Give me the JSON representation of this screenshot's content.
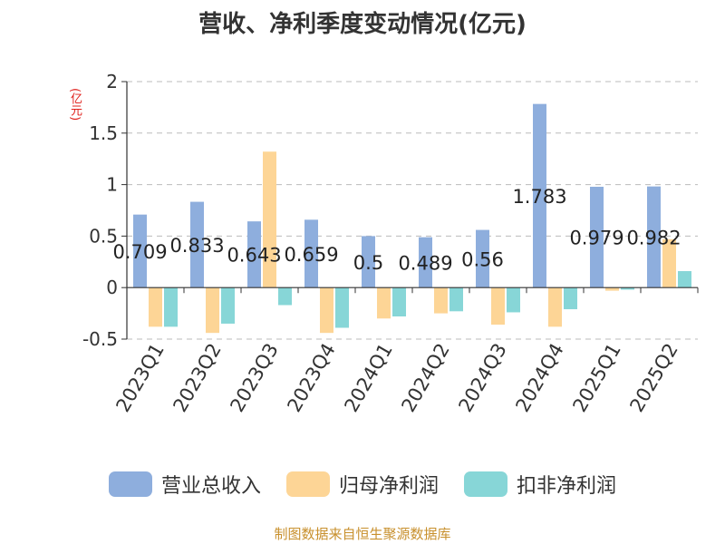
{
  "title": "营收、净利季度变动情况(亿元)",
  "unit_label": "(亿元)",
  "source": "制图数据来自恒生聚源数据库",
  "chart_data": {
    "type": "bar",
    "categories": [
      "2023Q1",
      "2023Q2",
      "2023Q3",
      "2023Q4",
      "2024Q1",
      "2024Q2",
      "2024Q3",
      "2024Q4",
      "2025Q1",
      "2025Q2"
    ],
    "series": [
      {
        "name": "营业总收入",
        "color": "#8eaedd",
        "values": [
          0.709,
          0.833,
          0.643,
          0.659,
          0.5,
          0.489,
          0.56,
          1.783,
          0.979,
          0.982
        ],
        "labels": [
          "0.709",
          "0.833",
          "0.643",
          "0.659",
          "0.5",
          "0.489",
          "0.56",
          "1.783",
          "0.979",
          "0.982"
        ]
      },
      {
        "name": "归母净利润",
        "color": "#fdd596",
        "values": [
          -0.38,
          -0.44,
          1.32,
          -0.44,
          -0.3,
          -0.25,
          -0.36,
          -0.38,
          -0.03,
          0.47
        ]
      },
      {
        "name": "扣非净利润",
        "color": "#87d6d7",
        "values": [
          -0.38,
          -0.35,
          -0.17,
          -0.39,
          -0.28,
          -0.23,
          -0.24,
          -0.21,
          -0.02,
          0.16
        ]
      }
    ],
    "ylim": [
      -0.5,
      2
    ],
    "yticks": [
      "-0.5",
      "0",
      "0.5",
      "1",
      "1.5",
      "2"
    ],
    "grid": true,
    "legend_position": "bottom"
  }
}
